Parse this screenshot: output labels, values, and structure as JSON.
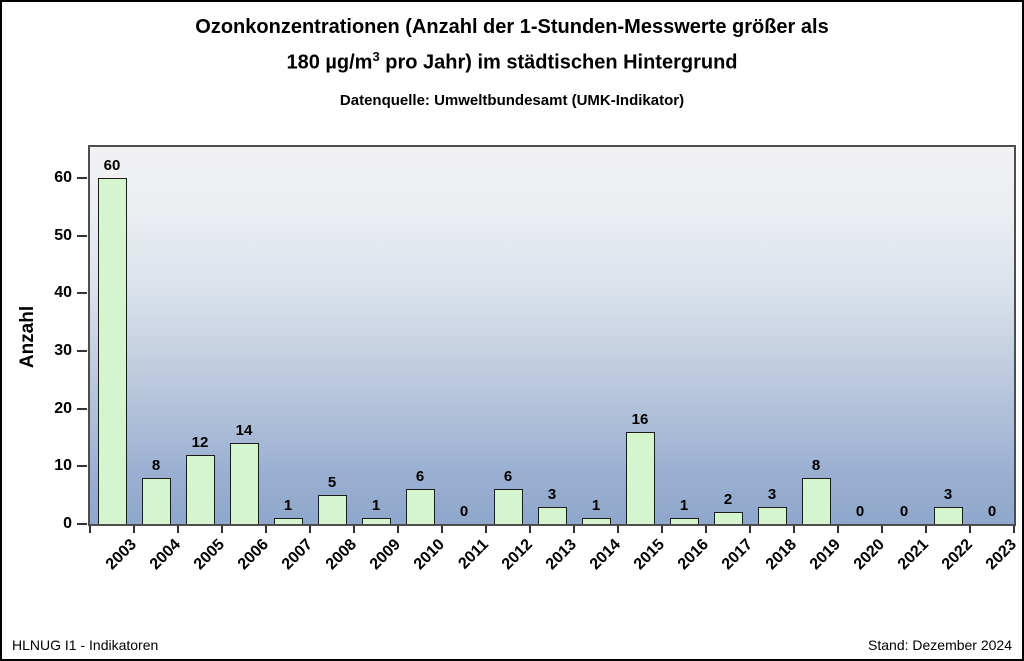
{
  "header": {
    "title_line1": "Ozonkonzentrationen (Anzahl der 1-Stunden-Messwerte größer als",
    "title_line2_pre": "180 µg/m",
    "title_line2_sup": "3",
    "title_line2_post": " pro Jahr) im städtischen Hintergrund",
    "subtitle": "Datenquelle: Umweltbundesamt (UMK-Indikator)"
  },
  "footer": {
    "left": "HLNUG I1 - Indikatoren",
    "right": "Stand: Dezember 2024"
  },
  "chart_data": {
    "type": "bar",
    "title": "Ozonkonzentrationen (Anzahl der 1-Stunden-Messwerte größer als 180 µg/m³ pro Jahr) im städtischen Hintergrund",
    "subtitle": "Datenquelle: Umweltbundesamt (UMK-Indikator)",
    "xlabel": "",
    "ylabel": "Anzahl",
    "categories": [
      "2003",
      "2004",
      "2005",
      "2006",
      "2007",
      "2008",
      "2009",
      "2010",
      "2011",
      "2012",
      "2013",
      "2014",
      "2015",
      "2016",
      "2017",
      "2018",
      "2019",
      "2020",
      "2021",
      "2022",
      "2023"
    ],
    "values": [
      60,
      8,
      12,
      14,
      1,
      5,
      1,
      6,
      0,
      6,
      3,
      1,
      16,
      1,
      2,
      3,
      8,
      0,
      0,
      3,
      0
    ],
    "value_labels_shown": true,
    "ylim": [
      0,
      65.4
    ],
    "yticks": [
      0,
      10,
      20,
      30,
      40,
      50,
      60
    ],
    "grid": false,
    "legend_position": "none",
    "colors": {
      "bar_fill": "#D5F5CF",
      "bar_border": "#1A1A1A",
      "plot_bg_gradient_top": "#F1F1F2",
      "plot_bg_gradient_bottom": "#8FA7CB",
      "plot_border": "#4D4D4F",
      "text": "#000000"
    }
  }
}
